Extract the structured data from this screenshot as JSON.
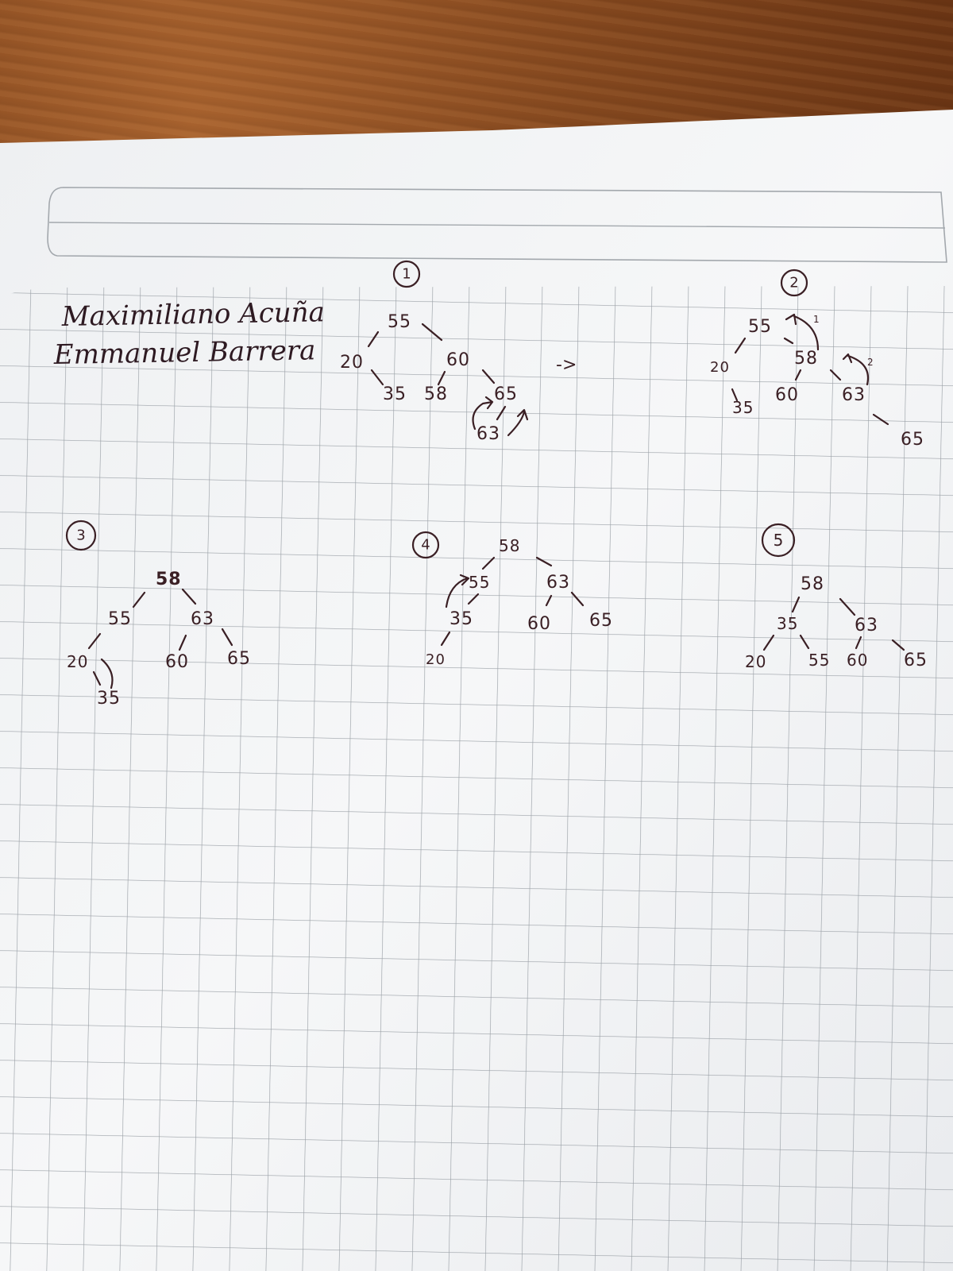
{
  "authors": [
    "Maximiliano Acuña",
    "Emmanuel Barrera"
  ],
  "arrow_glyph": "->",
  "steps": [
    {
      "number": "1",
      "nodes": [
        "55",
        "20",
        "60",
        "35",
        "58",
        "65",
        "63"
      ]
    },
    {
      "number": "2",
      "nodes": [
        "55",
        "20",
        "58",
        "35",
        "60",
        "63",
        "65"
      ],
      "rotation_marks": [
        "1",
        "2"
      ]
    },
    {
      "number": "3",
      "nodes": [
        "58",
        "55",
        "63",
        "20",
        "60",
        "65",
        "35"
      ]
    },
    {
      "number": "4",
      "nodes": [
        "58",
        "55",
        "63",
        "35",
        "60",
        "65",
        "20"
      ]
    },
    {
      "number": "5",
      "nodes": [
        "58",
        "35",
        "63",
        "20",
        "55",
        "60",
        "65"
      ]
    }
  ],
  "colors": {
    "ink": "#3a1f24",
    "paper": "#f4f5f7",
    "grid": "#9aa0a6",
    "desk": "#86491f"
  }
}
